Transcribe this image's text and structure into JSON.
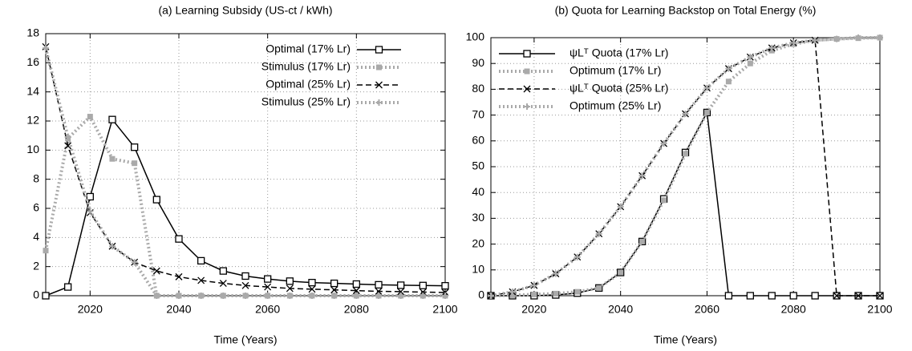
{
  "chart_data": [
    {
      "type": "line",
      "title": "(a) Learning Subsidy (US-ct / kWh)",
      "x_label": "Time (Years)",
      "x": [
        2010,
        2015,
        2020,
        2025,
        2030,
        2035,
        2040,
        2045,
        2050,
        2055,
        2060,
        2065,
        2070,
        2075,
        2080,
        2085,
        2090,
        2095,
        2100
      ],
      "xlim": [
        2010,
        2100
      ],
      "xticks": [
        2020,
        2040,
        2060,
        2080,
        2100
      ],
      "ylim": [
        0,
        18
      ],
      "yticks": [
        0,
        2,
        4,
        6,
        8,
        10,
        12,
        14,
        16,
        18
      ],
      "grid": true,
      "legend": "top right",
      "series": [
        {
          "name": "Optimal (17% Lr)",
          "color": "#000000",
          "dash": "solid",
          "marker": "square",
          "values": [
            0,
            0.6,
            6.8,
            12.1,
            10.2,
            6.6,
            3.9,
            2.4,
            1.7,
            1.35,
            1.15,
            1.0,
            0.9,
            0.85,
            0.8,
            0.75,
            0.72,
            0.7,
            0.68
          ]
        },
        {
          "name": "Stimulus (17% Lr)",
          "color": "#aaaaaa",
          "dash": "dotted",
          "marker": "filled-square",
          "values": [
            3.1,
            10.8,
            12.3,
            9.4,
            9.1,
            0,
            0,
            0,
            0,
            0,
            0,
            0,
            0,
            0,
            0,
            0,
            0,
            0,
            0
          ]
        },
        {
          "name": "Optimal (25% Lr)",
          "color": "#000000",
          "dash": "dashed",
          "marker": "cross",
          "values": [
            17.1,
            10.3,
            5.7,
            3.4,
            2.3,
            1.7,
            1.3,
            1.05,
            0.85,
            0.7,
            0.6,
            0.5,
            0.45,
            0.4,
            0.35,
            0.3,
            0.28,
            0.25,
            0.22
          ]
        },
        {
          "name": "Stimulus (25% Lr)",
          "color": "#aaaaaa",
          "dash": "dotted",
          "marker": "plus",
          "values": [
            17.0,
            10.9,
            5.8,
            3.4,
            2.3,
            0,
            0,
            0,
            0,
            0,
            0,
            0,
            0,
            0,
            0,
            0,
            0,
            0,
            0
          ]
        }
      ]
    },
    {
      "type": "line",
      "title": "(b) Quota for Learning Backstop on Total Energy (%)",
      "x_label": "Time (Years)",
      "x": [
        2010,
        2015,
        2020,
        2025,
        2030,
        2035,
        2040,
        2045,
        2050,
        2055,
        2060,
        2065,
        2070,
        2075,
        2080,
        2085,
        2090,
        2095,
        2100
      ],
      "xlim": [
        2010,
        2100
      ],
      "xticks": [
        2020,
        2040,
        2060,
        2080,
        2100
      ],
      "ylim": [
        0,
        100
      ],
      "yticks": [
        0,
        10,
        20,
        30,
        40,
        50,
        60,
        70,
        80,
        90,
        100
      ],
      "grid": true,
      "legend": "top left",
      "series": [
        {
          "name": "ψLᵀ Quota (17% Lr)",
          "color": "#000000",
          "dash": "solid",
          "marker": "square",
          "values": [
            0,
            0,
            0,
            0.3,
            1,
            3,
            9,
            21,
            37.5,
            55.5,
            71,
            0,
            0,
            0,
            0,
            0,
            0,
            0,
            0
          ]
        },
        {
          "name": "Optimum (17% Lr)",
          "color": "#aaaaaa",
          "dash": "dotted",
          "marker": "filled-square",
          "values": [
            0,
            0.2,
            0.5,
            0.8,
            1.5,
            3,
            9,
            21,
            37,
            55,
            71,
            83,
            90,
            95,
            97.5,
            99,
            99.5,
            99.8,
            100
          ]
        },
        {
          "name": "ψLᵀ Quota (25% Lr)",
          "color": "#000000",
          "dash": "dashed",
          "marker": "cross",
          "values": [
            0,
            1.5,
            4,
            8.5,
            15,
            24,
            34.5,
            46.5,
            59,
            70.5,
            80.5,
            88,
            92.5,
            96,
            98,
            99,
            0,
            0,
            0
          ]
        },
        {
          "name": "Optimum (25% Lr)",
          "color": "#aaaaaa",
          "dash": "dotted",
          "marker": "plus",
          "values": [
            0,
            1.5,
            4,
            8.5,
            15,
            24,
            34.5,
            46.5,
            59,
            70.5,
            80.5,
            88,
            92.5,
            96,
            98,
            99,
            99.5,
            100,
            100
          ]
        }
      ]
    }
  ]
}
